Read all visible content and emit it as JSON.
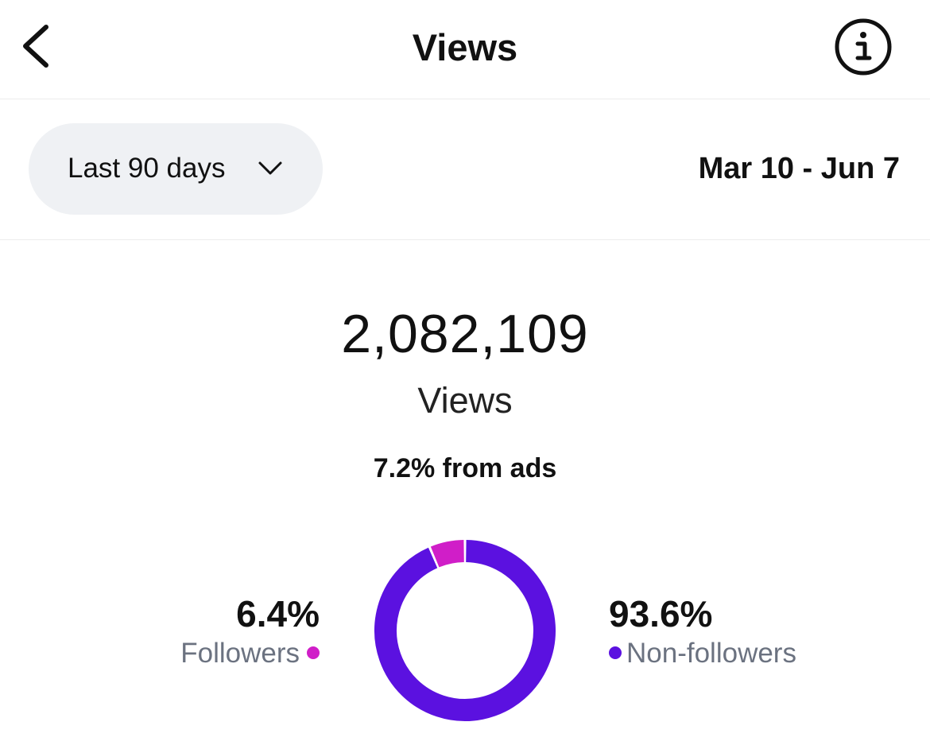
{
  "header": {
    "title": "Views",
    "back_icon": "chevron-left-icon",
    "info_icon": "info-circle-icon"
  },
  "filter": {
    "range_label": "Last 90 days",
    "range_icon": "chevron-down-icon",
    "date_range": "Mar 10 - Jun 7"
  },
  "summary": {
    "total": "2,082,109",
    "total_label": "Views",
    "ads_note": "7.2% from ads"
  },
  "breakdown": {
    "followers": {
      "percent_text": "6.4%",
      "label": "Followers",
      "color": "#d01ec8",
      "share": 6.4
    },
    "non_followers": {
      "percent_text": "93.6%",
      "label": "Non-followers",
      "color": "#5b11e0",
      "share": 93.6
    }
  }
}
